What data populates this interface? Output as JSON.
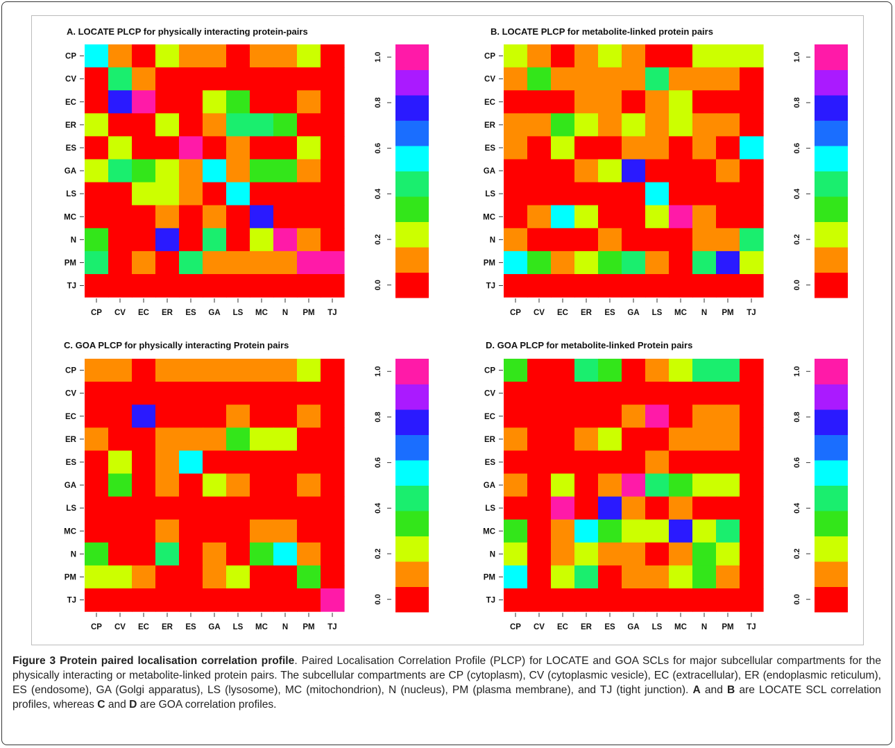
{
  "figure": {
    "caption_title": "Figure 3 Protein paired localisation correlation profile",
    "caption_text": ". Paired Localisation Correlation Profile (PLCP) for LOCATE and GOA SCLs for major subcellular compartments for the physically interacting or metabolite-linked protein pairs. The subcellular compartments are CP (cytoplasm), CV (cytoplasmic vesicle), EC (extracellular), ER (endoplasmic reticulum), ES (endosome), GA (Golgi apparatus), LS (lysosome), MC (mitochondrion), N (nucleus), PM (plasma membrane), and TJ (tight junction).",
    "caption_A": "A",
    "caption_and1": " and ",
    "caption_B": "B",
    "caption_mid": " are LOCATE SCL correlation profiles, whereas ",
    "caption_C": "C",
    "caption_and2": " and ",
    "caption_D": "D",
    "caption_end": " are GOA correlation profiles."
  },
  "chart_data": [
    {
      "type": "heatmap",
      "title": "A. LOCATE PLCP for physically interacting protein-pairs",
      "x_labels": [
        "CP",
        "CV",
        "EC",
        "ER",
        "ES",
        "GA",
        "LS",
        "MC",
        "N",
        "PM",
        "TJ"
      ],
      "y_labels": [
        "CP",
        "CV",
        "EC",
        "ER",
        "ES",
        "GA",
        "LS",
        "MC",
        "N",
        "PM",
        "TJ"
      ],
      "values": [
        [
          0.5,
          0.1,
          0.0,
          0.2,
          0.1,
          0.1,
          0.0,
          0.1,
          0.1,
          0.2,
          0.0
        ],
        [
          0.0,
          0.4,
          0.1,
          0.0,
          0.0,
          0.0,
          0.0,
          0.0,
          0.0,
          0.0,
          0.0
        ],
        [
          0.0,
          0.7,
          0.9,
          0.0,
          0.0,
          0.2,
          0.3,
          0.0,
          0.0,
          0.1,
          0.0
        ],
        [
          0.2,
          0.0,
          0.0,
          0.2,
          0.0,
          0.1,
          0.4,
          0.4,
          0.3,
          0.0,
          0.0
        ],
        [
          0.0,
          0.2,
          0.0,
          0.0,
          0.9,
          0.0,
          0.1,
          0.0,
          0.0,
          0.2,
          0.0
        ],
        [
          0.2,
          0.4,
          0.3,
          0.2,
          0.1,
          0.5,
          0.1,
          0.3,
          0.3,
          0.1,
          0.0
        ],
        [
          0.0,
          0.0,
          0.2,
          0.2,
          0.1,
          0.0,
          0.5,
          0.0,
          0.0,
          0.0,
          0.0
        ],
        [
          0.0,
          0.0,
          0.0,
          0.1,
          0.0,
          0.1,
          0.0,
          0.7,
          0.0,
          0.0,
          0.0
        ],
        [
          0.3,
          0.0,
          0.0,
          0.7,
          0.0,
          0.4,
          0.0,
          0.2,
          1.0,
          0.1,
          0.0
        ],
        [
          0.4,
          0.0,
          0.1,
          0.0,
          0.4,
          0.1,
          0.1,
          0.1,
          0.1,
          0.9,
          1.0
        ],
        [
          0.0,
          0.0,
          0.0,
          0.0,
          0.0,
          0.0,
          0.0,
          0.0,
          0.0,
          0.0,
          0.0
        ]
      ],
      "scale": {
        "min": 0.0,
        "max": 1.0,
        "ticks": [
          "0.0",
          "0.2",
          "0.4",
          "0.6",
          "0.8",
          "1.0"
        ]
      }
    },
    {
      "type": "heatmap",
      "title": "B. LOCATE PLCP for metabolite-linked protein pairs",
      "x_labels": [
        "CP",
        "CV",
        "EC",
        "ER",
        "ES",
        "GA",
        "LS",
        "MC",
        "N",
        "PM",
        "TJ"
      ],
      "y_labels": [
        "CP",
        "CV",
        "EC",
        "ER",
        "ES",
        "GA",
        "LS",
        "MC",
        "N",
        "PM",
        "TJ"
      ],
      "values": [
        [
          0.2,
          0.1,
          0.0,
          0.1,
          0.2,
          0.1,
          0.0,
          0.0,
          0.2,
          0.2,
          0.2
        ],
        [
          0.1,
          0.3,
          0.1,
          0.1,
          0.1,
          0.1,
          0.4,
          0.1,
          0.1,
          0.1,
          0.0
        ],
        [
          0.0,
          0.0,
          0.0,
          0.1,
          0.1,
          0.0,
          0.1,
          0.2,
          0.0,
          0.0,
          0.0
        ],
        [
          0.1,
          0.1,
          0.3,
          0.2,
          0.1,
          0.2,
          0.1,
          0.2,
          0.1,
          0.1,
          0.0
        ],
        [
          0.1,
          0.0,
          0.2,
          0.0,
          0.0,
          0.1,
          0.1,
          0.0,
          0.1,
          0.0,
          0.5
        ],
        [
          0.0,
          0.0,
          0.0,
          0.1,
          0.2,
          0.7,
          0.0,
          0.0,
          0.0,
          0.1,
          0.0
        ],
        [
          0.0,
          0.0,
          0.0,
          0.0,
          0.0,
          0.0,
          0.5,
          0.0,
          0.0,
          0.0,
          0.0
        ],
        [
          0.0,
          0.1,
          0.5,
          0.2,
          0.0,
          0.0,
          0.2,
          1.0,
          0.1,
          0.0,
          0.0
        ],
        [
          0.1,
          0.0,
          0.0,
          0.0,
          0.1,
          0.0,
          0.0,
          0.0,
          0.1,
          0.1,
          0.4
        ],
        [
          0.5,
          0.3,
          0.1,
          0.2,
          0.3,
          0.4,
          0.1,
          0.0,
          0.4,
          0.7,
          0.2
        ],
        [
          0.0,
          0.0,
          0.0,
          0.0,
          0.0,
          0.0,
          0.0,
          0.0,
          0.0,
          0.0,
          0.0
        ]
      ],
      "scale": {
        "min": 0.0,
        "max": 1.0,
        "ticks": [
          "0.0",
          "0.2",
          "0.4",
          "0.6",
          "0.8",
          "1.0"
        ]
      }
    },
    {
      "type": "heatmap",
      "title": "C. GOA PLCP for physically interacting Protein pairs",
      "x_labels": [
        "CP",
        "CV",
        "EC",
        "ER",
        "ES",
        "GA",
        "LS",
        "MC",
        "N",
        "PM",
        "TJ"
      ],
      "y_labels": [
        "CP",
        "CV",
        "EC",
        "ER",
        "ES",
        "GA",
        "LS",
        "MC",
        "N",
        "PM",
        "TJ"
      ],
      "values": [
        [
          0.1,
          0.1,
          0.0,
          0.1,
          0.1,
          0.1,
          0.1,
          0.1,
          0.1,
          0.2,
          0.0
        ],
        [
          0.0,
          0.0,
          0.0,
          0.0,
          0.0,
          0.0,
          0.0,
          0.0,
          0.0,
          0.0,
          0.0
        ],
        [
          0.0,
          0.0,
          0.7,
          0.0,
          0.0,
          0.0,
          0.1,
          0.0,
          0.0,
          0.1,
          0.0
        ],
        [
          0.1,
          0.0,
          0.0,
          0.1,
          0.1,
          0.1,
          0.3,
          0.2,
          0.2,
          0.0,
          0.0
        ],
        [
          0.0,
          0.2,
          0.0,
          0.1,
          0.5,
          0.0,
          0.0,
          0.0,
          0.0,
          0.0,
          0.0
        ],
        [
          0.0,
          0.3,
          0.0,
          0.1,
          0.0,
          0.2,
          0.1,
          0.0,
          0.0,
          0.1,
          0.0
        ],
        [
          0.0,
          0.0,
          0.0,
          0.0,
          0.0,
          0.0,
          0.0,
          0.0,
          0.0,
          0.0,
          0.0
        ],
        [
          0.0,
          0.0,
          0.0,
          0.1,
          0.0,
          0.0,
          0.0,
          0.1,
          0.1,
          0.0,
          0.0
        ],
        [
          0.3,
          0.0,
          0.0,
          0.4,
          0.0,
          0.1,
          0.0,
          0.3,
          0.5,
          0.1,
          0.0
        ],
        [
          0.2,
          0.2,
          0.1,
          0.0,
          0.0,
          0.1,
          0.2,
          0.0,
          0.0,
          0.3,
          0.0
        ],
        [
          0.0,
          0.0,
          0.0,
          0.0,
          0.0,
          0.0,
          0.0,
          0.0,
          0.0,
          0.0,
          1.0
        ]
      ],
      "scale": {
        "min": 0.0,
        "max": 1.0,
        "ticks": [
          "0.0",
          "0.2",
          "0.4",
          "0.6",
          "0.8",
          "1.0"
        ]
      }
    },
    {
      "type": "heatmap",
      "title": "D. GOA PLCP for metabolite-linked Protein pairs",
      "x_labels": [
        "CP",
        "CV",
        "EC",
        "ER",
        "ES",
        "GA",
        "LS",
        "MC",
        "N",
        "PM",
        "TJ"
      ],
      "y_labels": [
        "CP",
        "CV",
        "EC",
        "ER",
        "ES",
        "GA",
        "LS",
        "MC",
        "N",
        "PM",
        "TJ"
      ],
      "values": [
        [
          0.3,
          0.0,
          0.0,
          0.4,
          0.3,
          0.0,
          0.1,
          0.2,
          0.4,
          0.4,
          0.0
        ],
        [
          0.0,
          0.0,
          0.0,
          0.0,
          0.0,
          0.0,
          0.0,
          0.0,
          0.0,
          0.0,
          0.0
        ],
        [
          0.0,
          0.0,
          0.0,
          0.0,
          0.0,
          0.1,
          0.9,
          0.0,
          0.1,
          0.1,
          0.0
        ],
        [
          0.1,
          0.0,
          0.0,
          0.1,
          0.2,
          0.0,
          0.0,
          0.1,
          0.1,
          0.1,
          0.0
        ],
        [
          0.0,
          0.0,
          0.0,
          0.0,
          0.0,
          0.0,
          0.1,
          0.0,
          0.0,
          0.0,
          0.0
        ],
        [
          0.1,
          0.0,
          0.2,
          0.0,
          0.1,
          1.0,
          0.4,
          0.3,
          0.2,
          0.2,
          0.0
        ],
        [
          0.0,
          0.0,
          1.0,
          0.0,
          0.7,
          0.1,
          0.0,
          0.1,
          0.0,
          0.0,
          0.0
        ],
        [
          0.3,
          0.0,
          0.1,
          0.5,
          0.3,
          0.2,
          0.2,
          0.7,
          0.2,
          0.4,
          0.0
        ],
        [
          0.2,
          0.0,
          0.1,
          0.2,
          0.1,
          0.1,
          0.0,
          0.1,
          0.3,
          0.2,
          0.0
        ],
        [
          0.5,
          0.0,
          0.2,
          0.4,
          0.0,
          0.1,
          0.1,
          0.2,
          0.3,
          0.1,
          0.0
        ],
        [
          0.0,
          0.0,
          0.0,
          0.0,
          0.0,
          0.0,
          0.0,
          0.0,
          0.0,
          0.0,
          0.0
        ]
      ],
      "scale": {
        "min": 0.0,
        "max": 1.0,
        "ticks": [
          "0.0",
          "0.2",
          "0.4",
          "0.6",
          "0.8",
          "1.0"
        ]
      }
    }
  ],
  "colors": {
    "palette_low_to_high": [
      "#ff0000",
      "#ff8c00",
      "#ccff00",
      "#33e61a",
      "#1aee6e",
      "#00ffff",
      "#1a6eff",
      "#2a1aff",
      "#aa1aff",
      "#ff1aa8"
    ]
  }
}
